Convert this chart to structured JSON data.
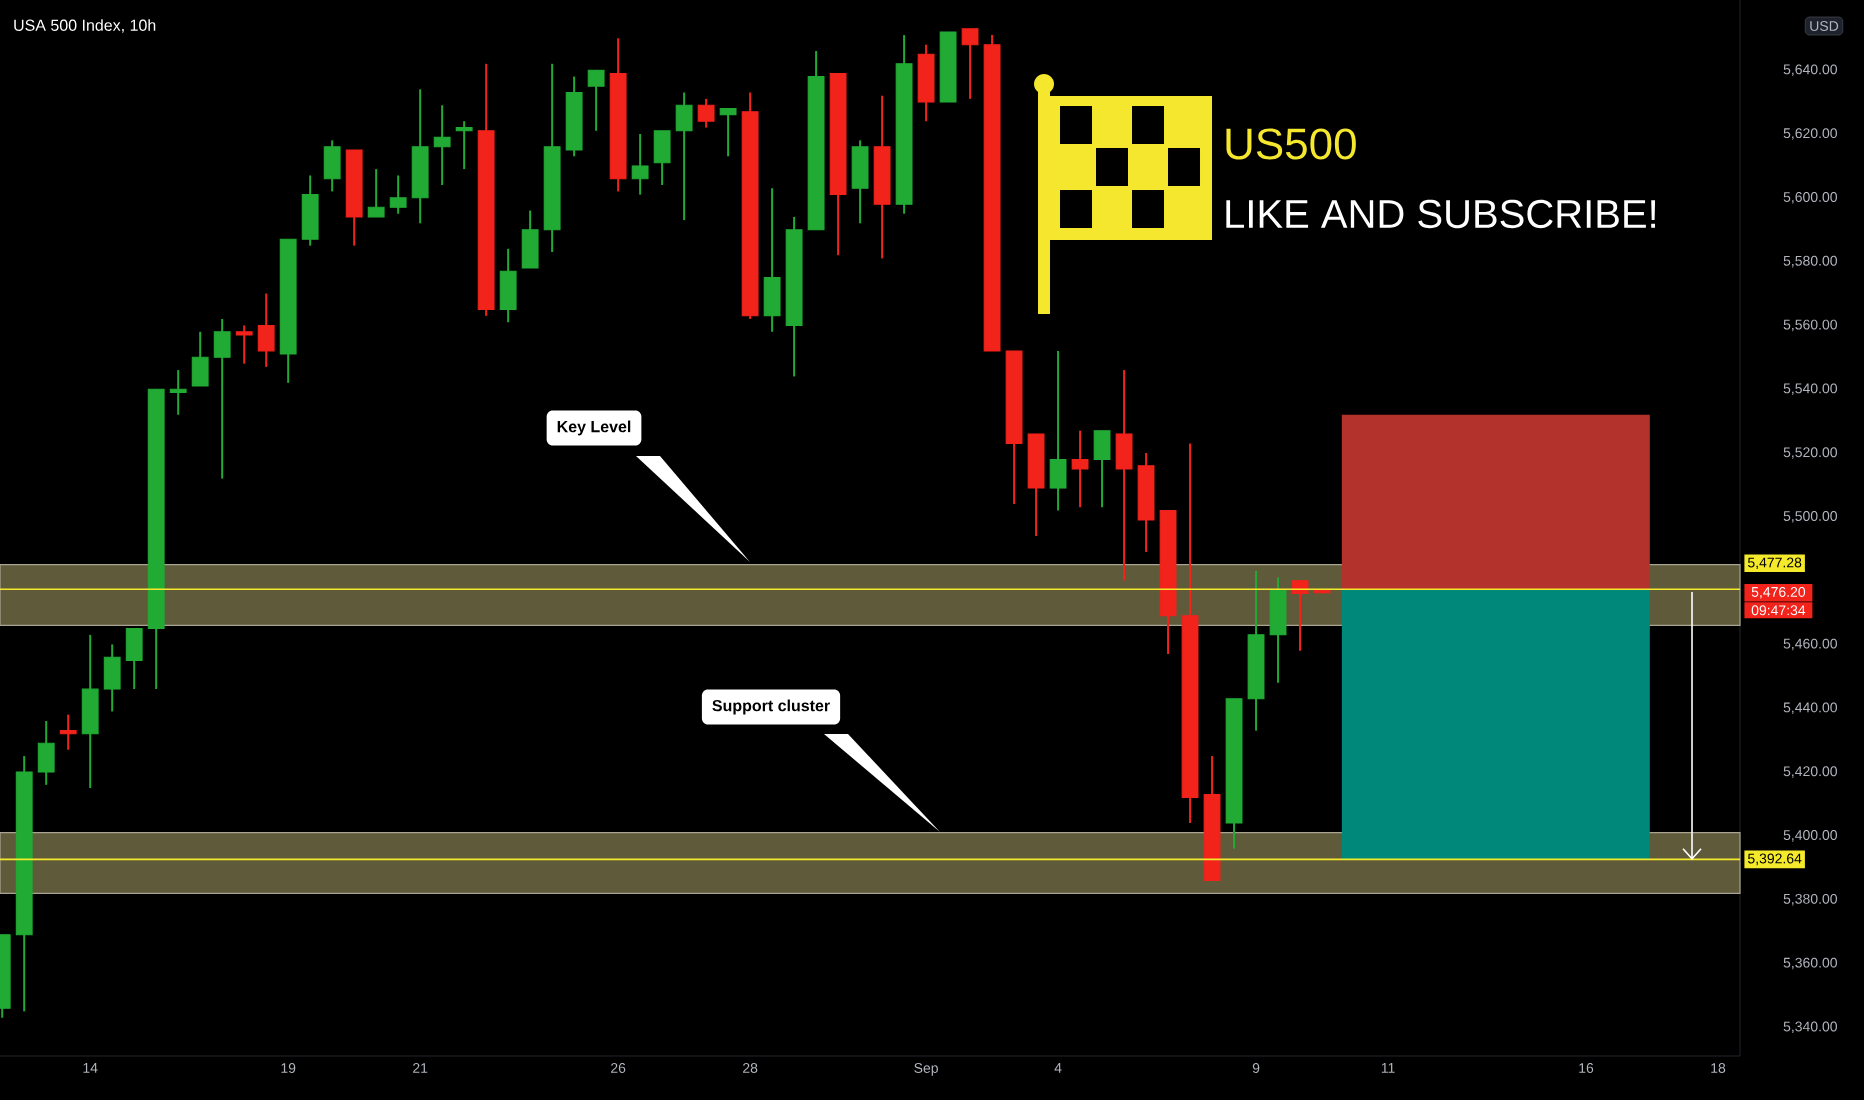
{
  "chart_data": {
    "type": "candlestick",
    "title": "US500",
    "subtitle": "LIKE AND SUBSCRIBE!",
    "ylabel": "USD",
    "categories": [
      null,
      null,
      null,
      null,
      "14",
      null,
      null,
      null,
      null,
      null,
      null,
      null,
      null,
      "19",
      null,
      null,
      null,
      null,
      null,
      "21",
      null,
      null,
      null,
      null,
      null,
      null,
      null,
      null,
      "26",
      null,
      null,
      null,
      null,
      null,
      "28",
      null,
      null,
      null,
      null,
      null,
      null,
      null,
      "Sep",
      null,
      null,
      null,
      null,
      null,
      "4",
      null,
      null,
      null,
      null,
      null,
      null,
      null,
      null,
      "9",
      null,
      null,
      null,
      null,
      null,
      "11",
      null,
      null,
      null,
      null,
      null,
      null,
      null,
      null,
      "16",
      null,
      null,
      null,
      null,
      null,
      "18"
    ],
    "ylim": [
      5331,
      5662
    ],
    "yticks": [
      {
        "value": 5340,
        "label": "5,340.00"
      },
      {
        "value": 5360,
        "label": "5,360.00"
      },
      {
        "value": 5380,
        "label": "5,380.00"
      },
      {
        "value": 5400,
        "label": "5,400.00"
      },
      {
        "value": 5420,
        "label": "5,420.00"
      },
      {
        "value": 5440,
        "label": "5,440.00"
      },
      {
        "value": 5460,
        "label": "5,460.00"
      },
      {
        "value": 5500,
        "label": "5,500.00"
      },
      {
        "value": 5520,
        "label": "5,520.00"
      },
      {
        "value": 5540,
        "label": "5,540.00"
      },
      {
        "value": 5560,
        "label": "5,560.00"
      },
      {
        "value": 5580,
        "label": "5,580.00"
      },
      {
        "value": 5600,
        "label": "5,600.00"
      },
      {
        "value": 5620,
        "label": "5,620.00"
      },
      {
        "value": 5640,
        "label": "5,640.00"
      }
    ],
    "bands": [
      {
        "axis": "y",
        "from": 5466,
        "to": 5485,
        "color": "#5f5a3a"
      },
      {
        "axis": "y",
        "from": 5382,
        "to": 5401,
        "color": "#5f5a3a"
      },
      {
        "axis": "y",
        "from": 5477.28,
        "to": 5532,
        "color": "#b3322b"
      },
      {
        "axis": "y",
        "from": 5392.64,
        "to": 5477.28,
        "color": "#00897b"
      }
    ],
    "ref_lines": [
      {
        "axis": "y",
        "value": 5477.28,
        "label": "5,477.28",
        "color": "#f5e92b"
      },
      {
        "axis": "y",
        "value": 5392.64,
        "label": "5,392.64",
        "color": "#f5e92b"
      }
    ],
    "annotations": [
      "USA 500 Index, 10h",
      "5,476.20",
      "09:47:34",
      "Key Level",
      "Support cluster"
    ],
    "series": [
      {
        "ohlc": [
          [
            5346,
            5369,
            5343,
            5369
          ],
          [
            5369,
            5425,
            5345,
            5420
          ],
          [
            5420,
            5436,
            5416,
            5429
          ],
          [
            5433,
            5438,
            5427,
            5432
          ],
          [
            5432,
            5463,
            5415,
            5446
          ],
          [
            5446,
            5460,
            5439,
            5456
          ],
          [
            5455,
            5465,
            5446,
            5465
          ],
          [
            5465,
            5540,
            5446,
            5540
          ],
          [
            5539,
            5546,
            5532,
            5540
          ],
          [
            5541,
            5558,
            5541,
            5550
          ],
          [
            5550,
            5562,
            5512,
            5558
          ],
          [
            5558,
            5560,
            5548,
            5557
          ],
          [
            5560,
            5570,
            5547,
            5552
          ],
          [
            5551,
            5587,
            5542,
            5587
          ],
          [
            5587,
            5607,
            5585,
            5601
          ],
          [
            5606,
            5618,
            5602,
            5616
          ],
          [
            5615,
            5615,
            5585,
            5594
          ],
          [
            5594,
            5609,
            5594,
            5597
          ],
          [
            5597,
            5607,
            5595,
            5600
          ],
          [
            5600,
            5634,
            5592,
            5616
          ],
          [
            5616,
            5629,
            5604,
            5619
          ],
          [
            5621,
            5624,
            5609,
            5622
          ],
          [
            5621,
            5642,
            5563,
            5565
          ],
          [
            5565,
            5584,
            5561,
            5577
          ],
          [
            5578,
            5596,
            5578,
            5590
          ],
          [
            5590,
            5642,
            5583,
            5616
          ],
          [
            5615,
            5638,
            5613,
            5633
          ],
          [
            5635,
            5640,
            5621,
            5640
          ],
          [
            5639,
            5650,
            5602,
            5606
          ],
          [
            5606,
            5620,
            5601,
            5610
          ],
          [
            5611,
            5621,
            5604,
            5621
          ],
          [
            5621,
            5633,
            5593,
            5629
          ],
          [
            5629,
            5631,
            5622,
            5624
          ],
          [
            5626,
            5628,
            5613,
            5628
          ],
          [
            5627,
            5633,
            5562,
            5563
          ],
          [
            5563,
            5603,
            5558,
            5575
          ],
          [
            5560,
            5594,
            5544,
            5590
          ],
          [
            5590,
            5646,
            5590,
            5638
          ],
          [
            5639,
            5639,
            5582,
            5601
          ],
          [
            5603,
            5618,
            5592,
            5616
          ],
          [
            5616,
            5632,
            5581,
            5598
          ],
          [
            5598,
            5651,
            5595,
            5642
          ],
          [
            5645,
            5648,
            5624,
            5630
          ],
          [
            5630,
            5652,
            5630,
            5652
          ],
          [
            5653,
            5653,
            5631,
            5648
          ],
          [
            5648,
            5651,
            5552,
            5552
          ],
          [
            5552,
            5552,
            5504,
            5523
          ],
          [
            5526,
            5526,
            5494,
            5509
          ],
          [
            5509,
            5552,
            5502,
            5518
          ],
          [
            5518,
            5527,
            5503,
            5515
          ],
          [
            5518,
            5527,
            5503,
            5527
          ],
          [
            5526,
            5546,
            5480,
            5515
          ],
          [
            5516,
            5520,
            5489,
            5499
          ],
          [
            5502,
            5502,
            5457,
            5469
          ],
          [
            5469,
            5523,
            5404,
            5412
          ],
          [
            5413,
            5425,
            5386,
            5386
          ],
          [
            5404,
            5443,
            5396,
            5443
          ],
          [
            5443,
            5483,
            5433,
            5463
          ],
          [
            5463,
            5481,
            5448,
            5477
          ],
          [
            5480,
            5480,
            5458,
            5476
          ],
          [
            5477,
            5477,
            5476,
            5476.2
          ],
          null,
          null,
          null,
          null,
          null,
          null,
          null,
          null,
          null,
          null,
          null,
          null,
          null,
          null,
          null,
          null,
          null,
          null
        ],
        "colors": [
          "#22ab34",
          "#22ab34",
          "#22ab34",
          "#f2231b",
          "#22ab34",
          "#22ab34",
          "#22ab34",
          "#22ab34",
          "#22ab34",
          "#22ab34",
          "#22ab34",
          "#f2231b",
          "#f2231b",
          "#22ab34",
          "#22ab34",
          "#22ab34",
          "#f2231b",
          "#22ab34",
          "#22ab34",
          "#22ab34",
          "#22ab34",
          "#22ab34",
          "#f2231b",
          "#22ab34",
          "#22ab34",
          "#22ab34",
          "#22ab34",
          "#22ab34",
          "#f2231b",
          "#22ab34",
          "#22ab34",
          "#22ab34",
          "#f2231b",
          "#22ab34",
          "#f2231b",
          "#22ab34",
          "#22ab34",
          "#22ab34",
          "#f2231b",
          "#22ab34",
          "#f2231b",
          "#22ab34",
          "#f2231b",
          "#22ab34",
          "#f2231b",
          "#f2231b",
          "#f2231b",
          "#f2231b",
          "#22ab34",
          "#f2231b",
          "#22ab34",
          "#f2231b",
          "#f2231b",
          "#f2231b",
          "#f2231b",
          "#f2231b",
          "#22ab34",
          "#22ab34",
          "#22ab34",
          "#f2231b",
          "#f2231b",
          null,
          null,
          null,
          null,
          null,
          null,
          null,
          null,
          null,
          null,
          null,
          null,
          null,
          null,
          null,
          null,
          null,
          null
        ]
      }
    ]
  }
}
